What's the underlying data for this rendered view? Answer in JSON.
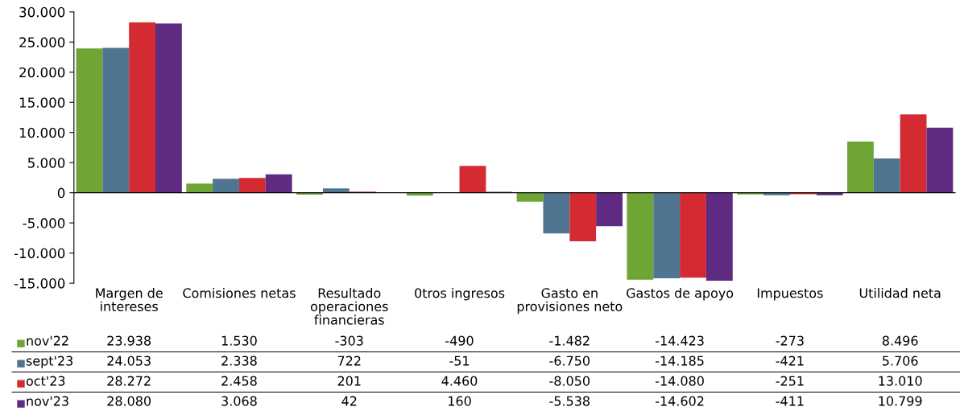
{
  "chart_data": {
    "type": "bar",
    "categories": [
      "Margen de intereses",
      "Comisiones netas",
      "Resultado operaciones financieras",
      "0tros ingresos",
      "Gasto en provisiones neto",
      "Gastos de apoyo",
      "Impuestos",
      "Utilidad neta"
    ],
    "series": [
      {
        "name": "nov'22",
        "color": "#6ea535",
        "values": [
          23938,
          1530,
          -303,
          -490,
          -1482,
          -14423,
          -273,
          8496
        ],
        "value_labels": [
          "23.938",
          "1.530",
          "-303",
          "-490",
          "-1.482",
          "-14.423",
          "-273",
          "8.496"
        ]
      },
      {
        "name": "sept'23",
        "color": "#4f7590",
        "values": [
          24053,
          2338,
          722,
          -51,
          -6750,
          -14185,
          -421,
          5706
        ],
        "value_labels": [
          "24.053",
          "2.338",
          "722",
          "-51",
          "-6.750",
          "-14.185",
          "-421",
          "5.706"
        ]
      },
      {
        "name": "oct'23",
        "color": "#d42b32",
        "values": [
          28272,
          2458,
          201,
          4460,
          -8050,
          -14080,
          -251,
          13010
        ],
        "value_labels": [
          "28.272",
          "2.458",
          "201",
          "4.460",
          "-8.050",
          "-14.080",
          "-251",
          "13.010"
        ]
      },
      {
        "name": "nov'23",
        "color": "#5f2a82",
        "values": [
          28080,
          3068,
          42,
          160,
          -5538,
          -14602,
          -411,
          10799
        ],
        "value_labels": [
          "28.080",
          "3.068",
          "42",
          "160",
          "-5.538",
          "-14.602",
          "-411",
          "10.799"
        ]
      }
    ],
    "ylim": [
      -15000,
      30000
    ],
    "yticks": [
      {
        "value": -15000,
        "label": "-15.000"
      },
      {
        "value": -10000,
        "label": "-10.000"
      },
      {
        "value": -5000,
        "label": "-5.000"
      },
      0,
      {
        "value": 5000,
        "label": "5.000"
      },
      {
        "value": 10000,
        "label": "10.000"
      },
      {
        "value": 15000,
        "label": "15.000"
      },
      {
        "value": 20000,
        "label": "20.000"
      },
      {
        "value": 25000,
        "label": "25.000"
      },
      {
        "value": 30000,
        "label": "30.000"
      }
    ],
    "legend": "bottom left"
  }
}
